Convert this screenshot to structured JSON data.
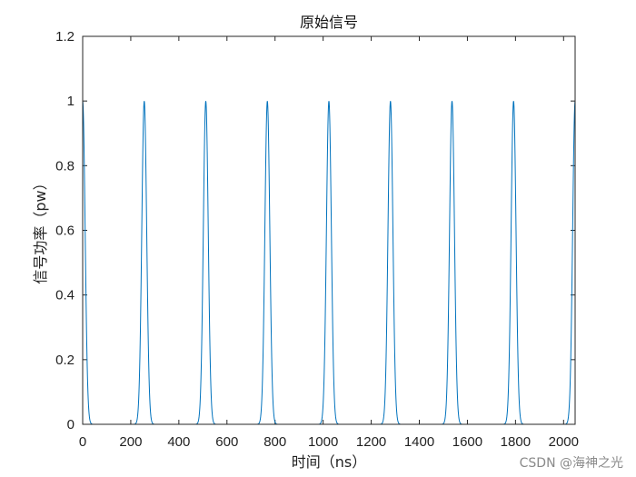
{
  "chart_data": {
    "type": "line",
    "title": "原始信号",
    "xlabel": "时间（ns）",
    "ylabel": "信号功率（pw）",
    "xlim": [
      0,
      2048
    ],
    "ylim": [
      0,
      1.2
    ],
    "xticks": [
      0,
      200,
      400,
      600,
      800,
      1000,
      1200,
      1400,
      1600,
      1800,
      2000
    ],
    "yticks": [
      0,
      0.2,
      0.4,
      0.6,
      0.8,
      1,
      1.2
    ],
    "grid": false,
    "series": [
      {
        "color": "#0072BD",
        "pulse_shape": "gaussian",
        "pulse_peak": 1,
        "pulse_centers": [
          0,
          256,
          512,
          768,
          1024,
          1280,
          1536,
          1792,
          2048
        ],
        "pulse_fwhm": 24
      }
    ]
  },
  "watermark": "CSDN @海神之光"
}
